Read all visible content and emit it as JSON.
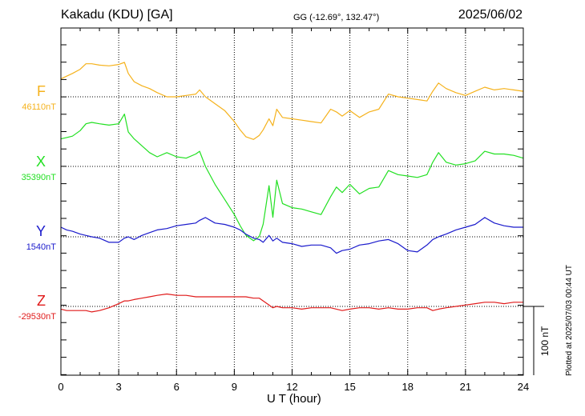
{
  "header": {
    "title": "Kakadu (KDU)  [GA]",
    "coords": "GG (-12.69°, 132.47°)",
    "date": "2025/06/02"
  },
  "footer": {
    "plotted": "Plotted at 2025/07/03 00:44 UT",
    "scale_label": "100 nT"
  },
  "chart_data": {
    "type": "line",
    "title": "Kakadu (KDU)  [GA]",
    "xlabel": "U T (hour)",
    "ylabel": "",
    "xlim": [
      0,
      24
    ],
    "x_ticks": [
      "0",
      "3",
      "6",
      "9",
      "12",
      "15",
      "18",
      "21",
      "24"
    ],
    "grid": true,
    "scale_bar_nT": 100,
    "series": [
      {
        "name": "F",
        "baseline_label": "46110nT",
        "baseline_nT": 46110,
        "color": "#f5b21c",
        "x": [
          0,
          0.3,
          0.6,
          1.0,
          1.3,
          1.6,
          2.0,
          2.5,
          3.0,
          3.3,
          3.5,
          3.8,
          4.2,
          4.6,
          5.0,
          5.5,
          6.0,
          6.5,
          7.0,
          7.2,
          7.5,
          8.0,
          8.5,
          9.0,
          9.3,
          9.6,
          10.0,
          10.3,
          10.5,
          10.8,
          11.0,
          11.2,
          11.5,
          12.0,
          12.5,
          13.0,
          13.5,
          14.0,
          14.3,
          14.6,
          15.0,
          15.5,
          16.0,
          16.5,
          17.0,
          17.5,
          18.0,
          18.5,
          19.0,
          19.3,
          19.6,
          20.0,
          20.5,
          21.0,
          21.5,
          22.0,
          22.5,
          23.0,
          23.5,
          24.0
        ],
        "y": [
          26,
          30,
          34,
          40,
          48,
          48,
          46,
          45,
          47,
          50,
          34,
          22,
          16,
          12,
          6,
          0,
          0,
          2,
          4,
          10,
          0,
          -10,
          -20,
          -36,
          -48,
          -58,
          -62,
          -56,
          -48,
          -32,
          -42,
          -18,
          -30,
          -32,
          -34,
          -36,
          -38,
          -18,
          -22,
          -28,
          -20,
          -30,
          -22,
          -18,
          4,
          0,
          -2,
          -4,
          -6,
          8,
          20,
          12,
          6,
          2,
          8,
          14,
          10,
          12,
          10,
          8
        ]
      },
      {
        "name": "X",
        "baseline_label": "35390nT",
        "baseline_nT": 35390,
        "color": "#22e022",
        "x": [
          0,
          0.3,
          0.6,
          1.0,
          1.3,
          1.6,
          2.0,
          2.5,
          3.0,
          3.3,
          3.5,
          3.8,
          4.2,
          4.6,
          5.0,
          5.5,
          6.0,
          6.5,
          7.0,
          7.2,
          7.5,
          8.0,
          8.5,
          9.0,
          9.3,
          9.6,
          10.0,
          10.3,
          10.5,
          10.8,
          11.0,
          11.2,
          11.5,
          12.0,
          12.5,
          13.0,
          13.5,
          14.0,
          14.3,
          14.6,
          15.0,
          15.5,
          16.0,
          16.5,
          17.0,
          17.5,
          18.0,
          18.5,
          19.0,
          19.3,
          19.6,
          20.0,
          20.5,
          21.0,
          21.5,
          22.0,
          22.5,
          23.0,
          23.5,
          24.0
        ],
        "y": [
          40,
          42,
          44,
          52,
          62,
          64,
          62,
          60,
          62,
          76,
          50,
          40,
          30,
          20,
          14,
          20,
          14,
          12,
          18,
          22,
          0,
          -26,
          -48,
          -70,
          -86,
          -100,
          -108,
          -102,
          -84,
          -28,
          -74,
          -20,
          -54,
          -60,
          -62,
          -66,
          -70,
          -44,
          -30,
          -38,
          -26,
          -40,
          -32,
          -30,
          -6,
          -12,
          -14,
          -16,
          -12,
          6,
          20,
          6,
          2,
          4,
          8,
          22,
          18,
          18,
          16,
          12
        ]
      },
      {
        "name": "Y",
        "baseline_label": "1540nT",
        "baseline_nT": 1540,
        "color": "#1a1acc",
        "x": [
          0,
          0.3,
          0.6,
          1.0,
          1.3,
          1.6,
          2.0,
          2.5,
          3.0,
          3.3,
          3.5,
          3.8,
          4.2,
          4.6,
          5.0,
          5.5,
          6.0,
          6.5,
          7.0,
          7.2,
          7.5,
          8.0,
          8.5,
          9.0,
          9.3,
          9.6,
          10.0,
          10.3,
          10.5,
          10.8,
          11.0,
          11.2,
          11.5,
          12.0,
          12.5,
          13.0,
          13.5,
          14.0,
          14.3,
          14.6,
          15.0,
          15.5,
          16.0,
          16.5,
          17.0,
          17.5,
          18.0,
          18.5,
          19.0,
          19.3,
          19.6,
          20.0,
          20.5,
          21.0,
          21.5,
          22.0,
          22.5,
          23.0,
          23.5,
          24.0
        ],
        "y": [
          14,
          10,
          8,
          4,
          2,
          0,
          -2,
          -8,
          -8,
          -2,
          0,
          -4,
          2,
          6,
          10,
          12,
          16,
          18,
          20,
          24,
          28,
          20,
          18,
          14,
          10,
          4,
          -2,
          -4,
          -8,
          2,
          -6,
          -2,
          -8,
          -10,
          -14,
          -12,
          -12,
          -16,
          -24,
          -20,
          -18,
          -12,
          -10,
          -6,
          -4,
          -10,
          -20,
          -22,
          -12,
          -4,
          0,
          4,
          10,
          14,
          18,
          28,
          20,
          16,
          14,
          14
        ]
      },
      {
        "name": "Z",
        "baseline_label": "-29530nT",
        "baseline_nT": -29530,
        "color": "#e01a1a",
        "x": [
          0,
          0.3,
          0.6,
          1.0,
          1.3,
          1.6,
          2.0,
          2.5,
          3.0,
          3.3,
          3.5,
          3.8,
          4.2,
          4.6,
          5.0,
          5.5,
          6.0,
          6.5,
          7.0,
          7.2,
          7.5,
          8.0,
          8.5,
          9.0,
          9.3,
          9.6,
          10.0,
          10.3,
          10.5,
          10.8,
          11.0,
          11.2,
          11.5,
          12.0,
          12.5,
          13.0,
          13.5,
          14.0,
          14.3,
          14.6,
          15.0,
          15.5,
          16.0,
          16.5,
          17.0,
          17.5,
          18.0,
          18.5,
          19.0,
          19.3,
          19.6,
          20.0,
          20.5,
          21.0,
          21.5,
          22.0,
          22.5,
          23.0,
          23.5,
          24.0
        ],
        "y": [
          -4,
          -6,
          -6,
          -6,
          -6,
          -8,
          -6,
          -2,
          4,
          8,
          8,
          10,
          12,
          14,
          16,
          18,
          16,
          16,
          14,
          14,
          14,
          14,
          14,
          14,
          14,
          14,
          12,
          12,
          8,
          2,
          -2,
          0,
          -2,
          -2,
          -4,
          -2,
          -2,
          -2,
          -4,
          -6,
          -4,
          -2,
          -2,
          -4,
          -2,
          -4,
          -4,
          -2,
          -2,
          -6,
          -4,
          -2,
          0,
          2,
          4,
          6,
          6,
          4,
          6,
          6
        ]
      }
    ]
  }
}
